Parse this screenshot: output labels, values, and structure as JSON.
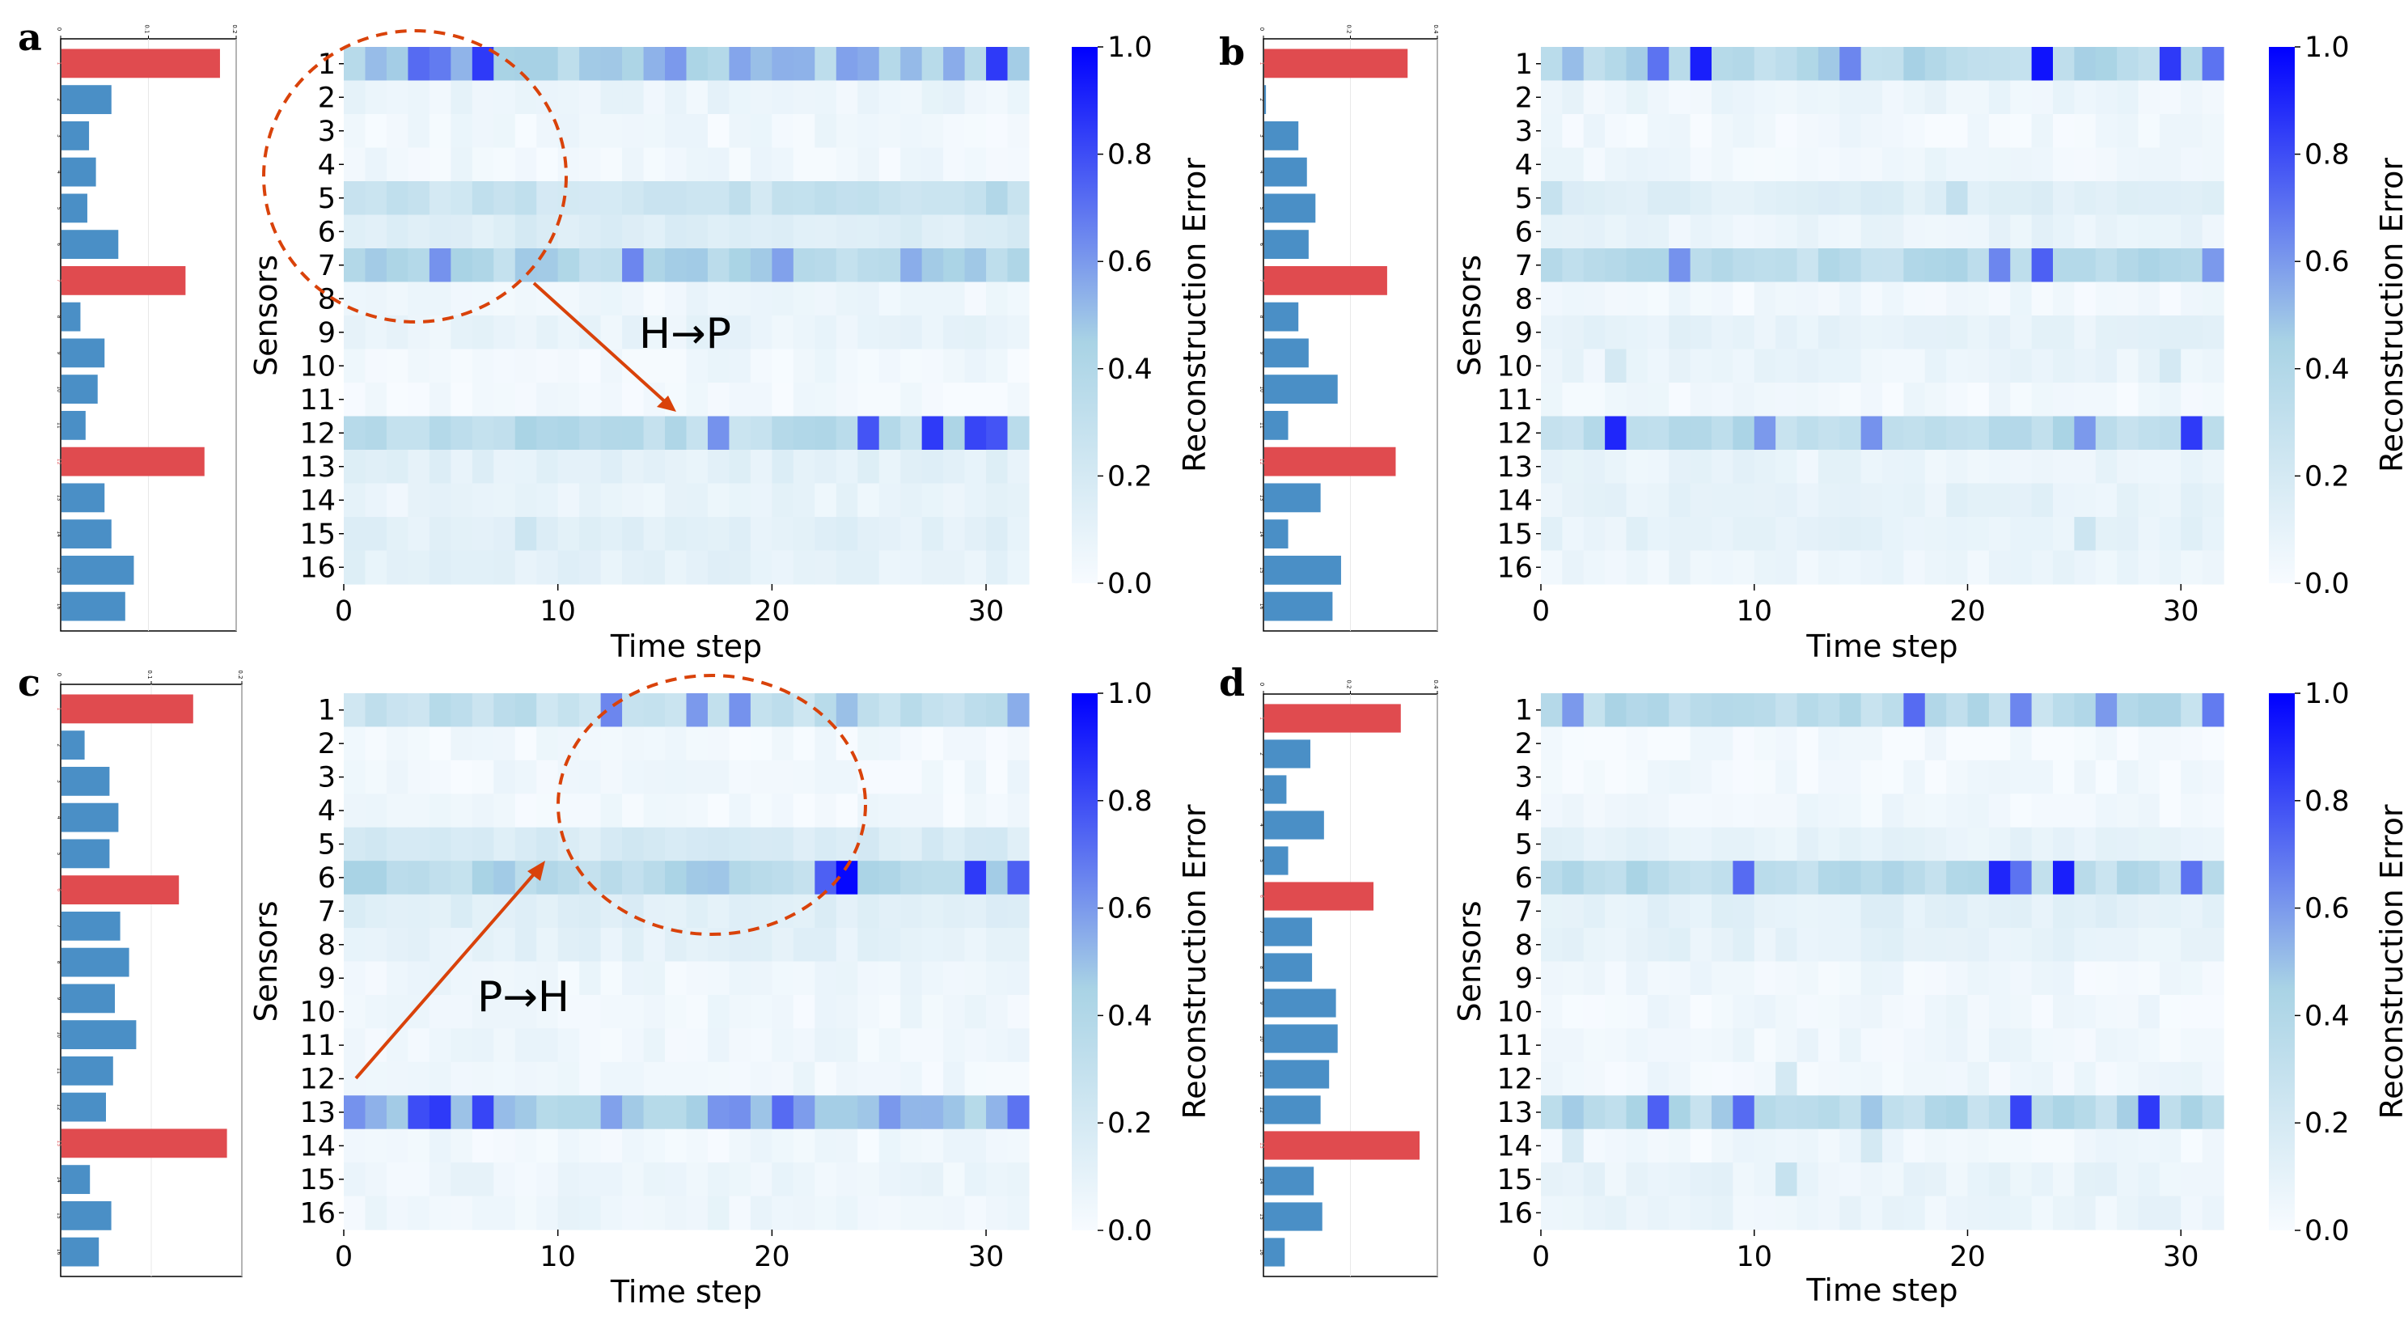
{
  "figure": {
    "colorbar": {
      "label": "Reconstruction Error",
      "ticks": [
        "0.0",
        "0.2",
        "0.4",
        "0.6",
        "0.8",
        "1.0"
      ],
      "colors": [
        "#f7fbff",
        "#a9d3e5",
        "#0000ff"
      ]
    },
    "colors": {
      "bar_normal": "#4a8fc6",
      "bar_highlight": "#e04b4f",
      "annotation": "#d9420a",
      "frame": "#000000"
    }
  },
  "chart_data": [
    {
      "panel": "a",
      "type": "heatmap",
      "xlabel": "Time step",
      "ylabel": "Sensors",
      "x_ticks": [
        "0",
        "10",
        "20",
        "30"
      ],
      "y_categories": [
        "1",
        "2",
        "3",
        "4",
        "5",
        "6",
        "7",
        "8",
        "9",
        "10",
        "11",
        "12",
        "13",
        "14",
        "15",
        "16"
      ],
      "n_timesteps": 32,
      "zlim": [
        0,
        1
      ],
      "annotation_text": "H→P",
      "row_profile": [
        {
          "sensor": 1,
          "mean": 0.45,
          "peaks": [
            [
              3,
              0.72
            ],
            [
              4,
              0.68
            ],
            [
              6,
              0.85
            ],
            [
              15,
              0.6
            ],
            [
              23,
              0.58
            ],
            [
              30,
              0.85
            ]
          ]
        },
        {
          "sensor": 2,
          "mean": 0.07,
          "peaks": []
        },
        {
          "sensor": 3,
          "mean": 0.04,
          "peaks": []
        },
        {
          "sensor": 4,
          "mean": 0.04,
          "peaks": []
        },
        {
          "sensor": 5,
          "mean": 0.26,
          "peaks": [
            [
              30,
              0.4
            ]
          ]
        },
        {
          "sensor": 6,
          "mean": 0.16,
          "peaks": []
        },
        {
          "sensor": 7,
          "mean": 0.38,
          "peaks": [
            [
              4,
              0.62
            ],
            [
              13,
              0.65
            ],
            [
              20,
              0.58
            ],
            [
              26,
              0.55
            ]
          ]
        },
        {
          "sensor": 8,
          "mean": 0.05,
          "peaks": []
        },
        {
          "sensor": 9,
          "mean": 0.08,
          "peaks": []
        },
        {
          "sensor": 10,
          "mean": 0.04,
          "peaks": []
        },
        {
          "sensor": 11,
          "mean": 0.02,
          "peaks": []
        },
        {
          "sensor": 12,
          "mean": 0.35,
          "peaks": [
            [
              17,
              0.62
            ],
            [
              24,
              0.78
            ],
            [
              27,
              0.85
            ],
            [
              29,
              0.82
            ],
            [
              30,
              0.78
            ]
          ]
        },
        {
          "sensor": 13,
          "mean": 0.12,
          "peaks": []
        },
        {
          "sensor": 14,
          "mean": 0.08,
          "peaks": []
        },
        {
          "sensor": 15,
          "mean": 0.12,
          "peaks": [
            [
              8,
              0.25
            ]
          ]
        },
        {
          "sensor": 16,
          "mean": 0.11,
          "peaks": []
        }
      ],
      "bar_axis_ticks": [
        "0",
        "0.1",
        "0.2"
      ],
      "sensor_bars": [
        0.92,
        0.29,
        0.16,
        0.2,
        0.15,
        0.33,
        0.72,
        0.11,
        0.25,
        0.21,
        0.14,
        0.83,
        0.25,
        0.29,
        0.42,
        0.37
      ],
      "highlighted": [
        1,
        7,
        12
      ]
    },
    {
      "panel": "b",
      "type": "heatmap",
      "xlabel": "Time step",
      "ylabel": "Sensors",
      "x_ticks": [
        "0",
        "10",
        "20",
        "30"
      ],
      "y_categories": [
        "1",
        "2",
        "3",
        "4",
        "5",
        "6",
        "7",
        "8",
        "9",
        "10",
        "11",
        "12",
        "13",
        "14",
        "15",
        "16"
      ],
      "n_timesteps": 32,
      "zlim": [
        0,
        1
      ],
      "row_profile": [
        {
          "sensor": 1,
          "mean": 0.4,
          "peaks": [
            [
              5,
              0.7
            ],
            [
              7,
              0.92
            ],
            [
              14,
              0.65
            ],
            [
              23,
              0.95
            ],
            [
              29,
              0.85
            ],
            [
              31,
              0.7
            ]
          ]
        },
        {
          "sensor": 2,
          "mean": 0.06,
          "peaks": []
        },
        {
          "sensor": 3,
          "mean": 0.04,
          "peaks": []
        },
        {
          "sensor": 4,
          "mean": 0.05,
          "peaks": []
        },
        {
          "sensor": 5,
          "mean": 0.14,
          "peaks": [
            [
              0,
              0.28
            ],
            [
              19,
              0.3
            ]
          ]
        },
        {
          "sensor": 6,
          "mean": 0.08,
          "peaks": []
        },
        {
          "sensor": 7,
          "mean": 0.35,
          "peaks": [
            [
              6,
              0.62
            ],
            [
              21,
              0.65
            ],
            [
              23,
              0.75
            ],
            [
              31,
              0.6
            ]
          ]
        },
        {
          "sensor": 8,
          "mean": 0.04,
          "peaks": []
        },
        {
          "sensor": 9,
          "mean": 0.1,
          "peaks": []
        },
        {
          "sensor": 10,
          "mean": 0.07,
          "peaks": [
            [
              3,
              0.2
            ],
            [
              29,
              0.2
            ]
          ]
        },
        {
          "sensor": 11,
          "mean": 0.03,
          "peaks": []
        },
        {
          "sensor": 12,
          "mean": 0.35,
          "peaks": [
            [
              3,
              0.9
            ],
            [
              10,
              0.6
            ],
            [
              15,
              0.62
            ],
            [
              25,
              0.6
            ],
            [
              30,
              0.85
            ]
          ]
        },
        {
          "sensor": 13,
          "mean": 0.08,
          "peaks": []
        },
        {
          "sensor": 14,
          "mean": 0.1,
          "peaks": []
        },
        {
          "sensor": 15,
          "mean": 0.1,
          "peaks": [
            [
              25,
              0.25
            ]
          ]
        },
        {
          "sensor": 16,
          "mean": 0.07,
          "peaks": []
        }
      ],
      "bar_axis_ticks": [
        "0",
        "0.2",
        "0.4"
      ],
      "sensor_bars": [
        0.84,
        0.01,
        0.2,
        0.25,
        0.3,
        0.26,
        0.72,
        0.2,
        0.26,
        0.43,
        0.14,
        0.77,
        0.33,
        0.14,
        0.45,
        0.4
      ],
      "highlighted": [
        1,
        7,
        12
      ]
    },
    {
      "panel": "c",
      "type": "heatmap",
      "xlabel": "Time step",
      "ylabel": "Sensors",
      "x_ticks": [
        "0",
        "10",
        "20",
        "30"
      ],
      "y_categories": [
        "1",
        "2",
        "3",
        "4",
        "5",
        "6",
        "7",
        "8",
        "9",
        "10",
        "11",
        "12",
        "13",
        "14",
        "15",
        "16"
      ],
      "n_timesteps": 32,
      "zlim": [
        0,
        1
      ],
      "annotation_text": "P→H",
      "row_profile": [
        {
          "sensor": 1,
          "mean": 0.3,
          "peaks": [
            [
              12,
              0.65
            ],
            [
              16,
              0.6
            ],
            [
              18,
              0.62
            ],
            [
              23,
              0.5
            ],
            [
              31,
              0.55
            ]
          ]
        },
        {
          "sensor": 2,
          "mean": 0.03,
          "peaks": []
        },
        {
          "sensor": 3,
          "mean": 0.04,
          "peaks": []
        },
        {
          "sensor": 4,
          "mean": 0.03,
          "peaks": []
        },
        {
          "sensor": 5,
          "mean": 0.18,
          "peaks": []
        },
        {
          "sensor": 6,
          "mean": 0.38,
          "peaks": [
            [
              23,
              0.98
            ],
            [
              22,
              0.75
            ],
            [
              29,
              0.85
            ],
            [
              31,
              0.75
            ]
          ]
        },
        {
          "sensor": 7,
          "mean": 0.14,
          "peaks": []
        },
        {
          "sensor": 8,
          "mean": 0.11,
          "peaks": []
        },
        {
          "sensor": 9,
          "mean": 0.05,
          "peaks": []
        },
        {
          "sensor": 10,
          "mean": 0.04,
          "peaks": []
        },
        {
          "sensor": 11,
          "mean": 0.05,
          "peaks": []
        },
        {
          "sensor": 12,
          "mean": 0.04,
          "peaks": []
        },
        {
          "sensor": 13,
          "mean": 0.5,
          "peaks": [
            [
              3,
              0.8
            ],
            [
              4,
              0.85
            ],
            [
              6,
              0.82
            ],
            [
              20,
              0.72
            ],
            [
              31,
              0.7
            ]
          ]
        },
        {
          "sensor": 14,
          "mean": 0.04,
          "peaks": []
        },
        {
          "sensor": 15,
          "mean": 0.06,
          "peaks": []
        },
        {
          "sensor": 16,
          "mean": 0.06,
          "peaks": []
        }
      ],
      "bar_axis_ticks": [
        "0",
        "0.1",
        "0.2"
      ],
      "sensor_bars": [
        0.74,
        0.13,
        0.27,
        0.32,
        0.27,
        0.66,
        0.33,
        0.38,
        0.3,
        0.42,
        0.29,
        0.25,
        0.93,
        0.16,
        0.28,
        0.21
      ],
      "highlighted": [
        1,
        6,
        13
      ]
    },
    {
      "panel": "d",
      "type": "heatmap",
      "xlabel": "Time step",
      "ylabel": "Sensors",
      "x_ticks": [
        "0",
        "10",
        "20",
        "30"
      ],
      "y_categories": [
        "1",
        "2",
        "3",
        "4",
        "5",
        "6",
        "7",
        "8",
        "9",
        "10",
        "11",
        "12",
        "13",
        "14",
        "15",
        "16"
      ],
      "n_timesteps": 32,
      "zlim": [
        0,
        1
      ],
      "row_profile": [
        {
          "sensor": 1,
          "mean": 0.35,
          "peaks": [
            [
              1,
              0.6
            ],
            [
              17,
              0.72
            ],
            [
              22,
              0.65
            ],
            [
              26,
              0.6
            ],
            [
              31,
              0.68
            ]
          ]
        },
        {
          "sensor": 2,
          "mean": 0.02,
          "peaks": []
        },
        {
          "sensor": 3,
          "mean": 0.03,
          "peaks": []
        },
        {
          "sensor": 4,
          "mean": 0.04,
          "peaks": []
        },
        {
          "sensor": 5,
          "mean": 0.1,
          "peaks": []
        },
        {
          "sensor": 6,
          "mean": 0.35,
          "peaks": [
            [
              9,
              0.72
            ],
            [
              21,
              0.9
            ],
            [
              24,
              0.92
            ],
            [
              22,
              0.7
            ],
            [
              30,
              0.7
            ]
          ]
        },
        {
          "sensor": 7,
          "mean": 0.12,
          "peaks": []
        },
        {
          "sensor": 8,
          "mean": 0.1,
          "peaks": []
        },
        {
          "sensor": 9,
          "mean": 0.04,
          "peaks": []
        },
        {
          "sensor": 10,
          "mean": 0.04,
          "peaks": []
        },
        {
          "sensor": 11,
          "mean": 0.05,
          "peaks": []
        },
        {
          "sensor": 12,
          "mean": 0.04,
          "peaks": [
            [
              11,
              0.2
            ]
          ]
        },
        {
          "sensor": 13,
          "mean": 0.38,
          "peaks": [
            [
              5,
              0.75
            ],
            [
              9,
              0.72
            ],
            [
              22,
              0.82
            ],
            [
              28,
              0.85
            ]
          ]
        },
        {
          "sensor": 14,
          "mean": 0.04,
          "peaks": [
            [
              1,
              0.18
            ],
            [
              15,
              0.2
            ]
          ]
        },
        {
          "sensor": 15,
          "mean": 0.08,
          "peaks": [
            [
              11,
              0.28
            ]
          ]
        },
        {
          "sensor": 16,
          "mean": 0.07,
          "peaks": []
        }
      ],
      "bar_axis_ticks": [
        "0",
        "0.2",
        "0.4"
      ],
      "sensor_bars": [
        0.8,
        0.27,
        0.13,
        0.35,
        0.14,
        0.64,
        0.28,
        0.28,
        0.42,
        0.43,
        0.38,
        0.33,
        0.91,
        0.29,
        0.34,
        0.12
      ],
      "highlighted": [
        1,
        6,
        13
      ]
    }
  ]
}
